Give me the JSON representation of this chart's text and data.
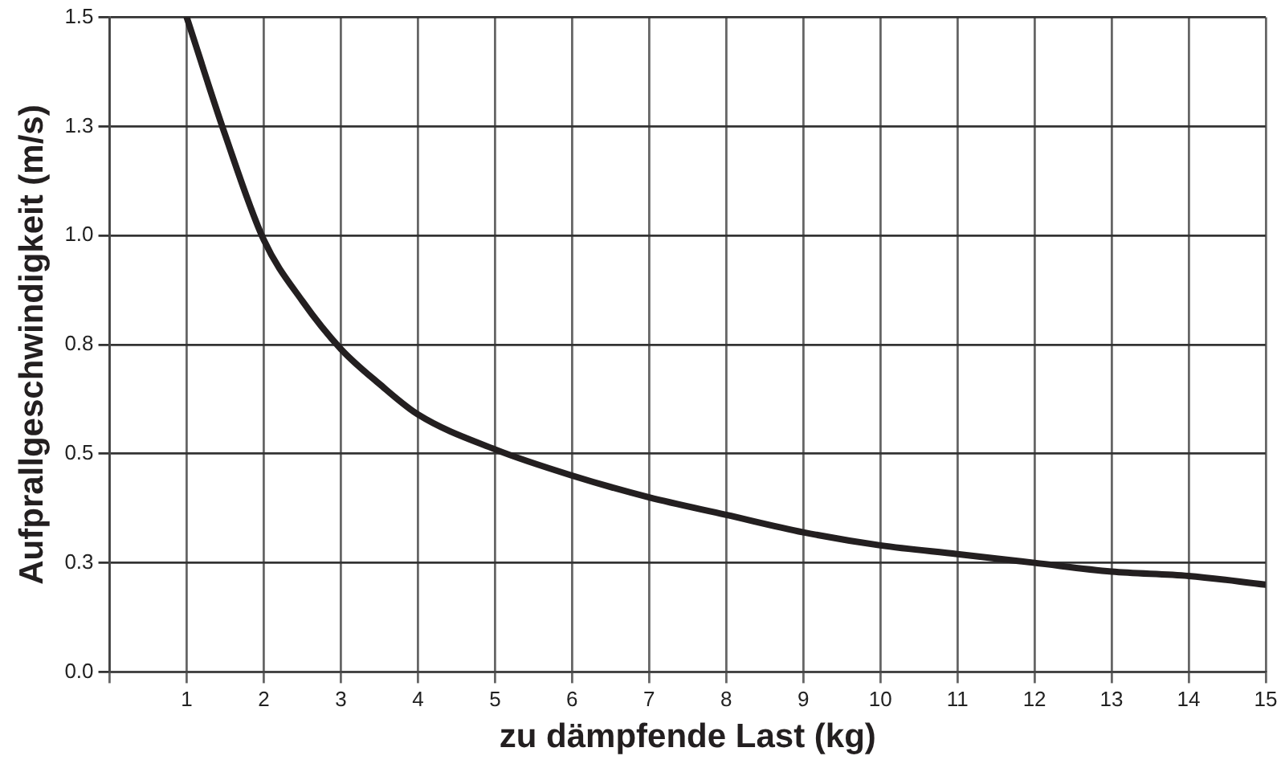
{
  "chart_data": {
    "type": "line",
    "xlabel": "zu dämpfende Last (kg)",
    "ylabel": "Aufprallgeschwindigkeit (m/s)",
    "x": [
      1,
      1.5,
      2,
      2.5,
      3,
      3.5,
      4,
      5,
      6,
      7,
      8,
      9,
      10,
      11,
      12,
      13,
      14,
      15
    ],
    "series": [
      {
        "color": "#231f20",
        "values": [
          1.5,
          1.23,
          0.99,
          0.85,
          0.74,
          0.66,
          0.59,
          0.51,
          0.45,
          0.4,
          0.36,
          0.32,
          0.29,
          0.27,
          0.25,
          0.23,
          0.22,
          0.2
        ]
      }
    ],
    "xlim": [
      0,
      15
    ],
    "xticks": [
      {
        "value": 0,
        "label": null
      },
      1,
      2,
      3,
      4,
      5,
      6,
      7,
      8,
      9,
      10,
      11,
      12,
      13,
      14,
      15
    ],
    "ylim": [
      0,
      1.5
    ],
    "yticks": [
      {
        "value": 0,
        "label": "0.0"
      },
      {
        "value": 0.25,
        "label": "0.3"
      },
      {
        "value": 0.5,
        "label": "0.5"
      },
      {
        "value": 0.75,
        "label": "0.8"
      },
      {
        "value": 1.0,
        "label": "1.0"
      },
      {
        "value": 1.25,
        "label": "1.3"
      },
      {
        "value": 1.5,
        "label": "1.5"
      }
    ],
    "grid": true,
    "legend": false,
    "marker": "none",
    "line_style": "solid"
  }
}
